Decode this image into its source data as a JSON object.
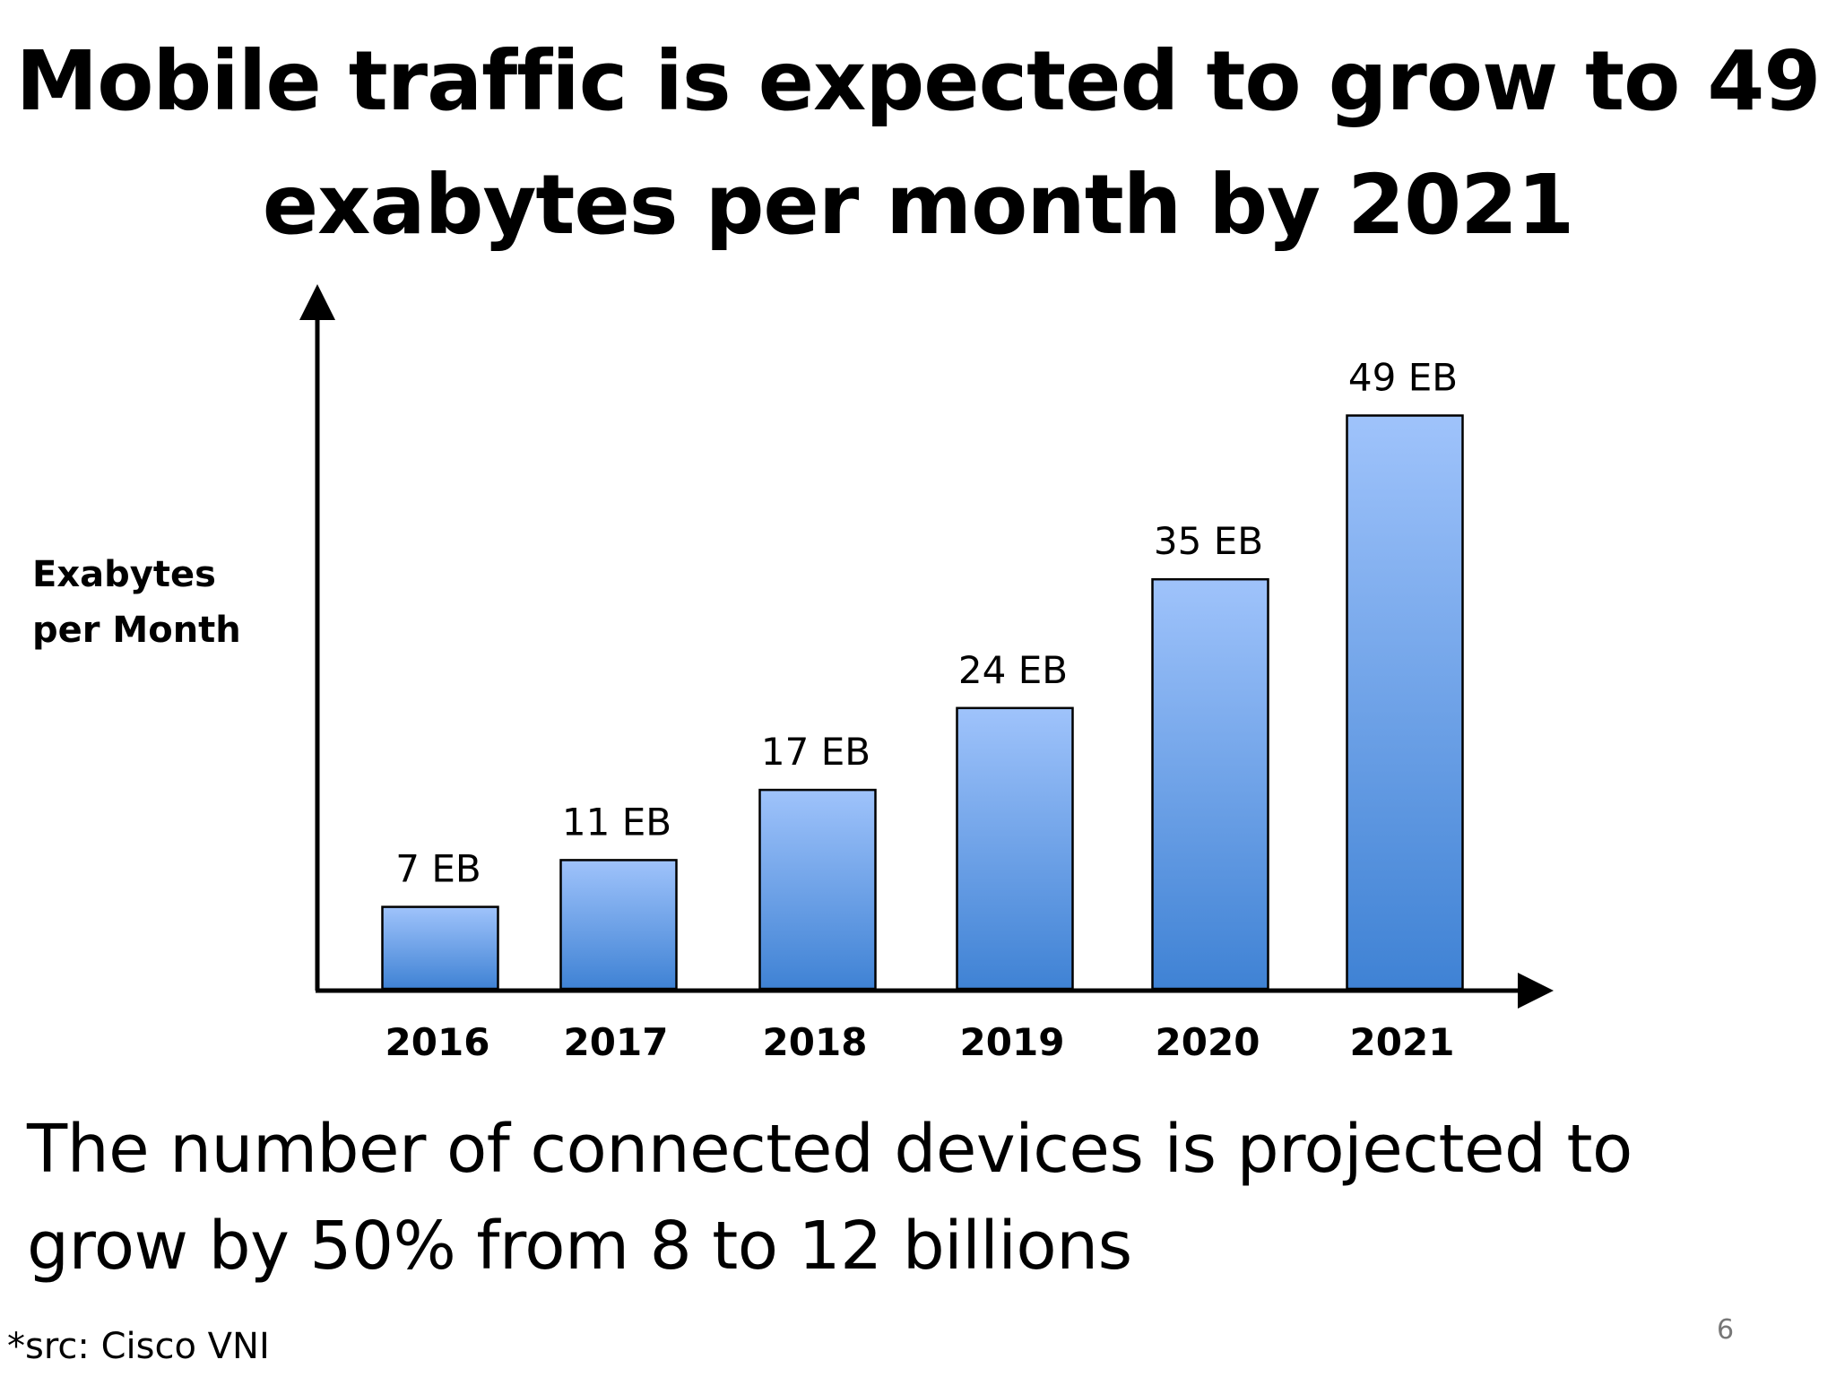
{
  "slide": {
    "title_line1": "Mobile traffic is expected to grow to 49",
    "title_line2": "exabytes per month by 2021",
    "subtitle_line1": "The number of connected devices is projected to",
    "subtitle_line2": "grow by 50% from 8 to 12 billions",
    "source": "*src: Cisco VNI",
    "page_number": "6"
  },
  "chart_data": {
    "type": "bar",
    "title": "",
    "ylabel_line1": "Exabytes",
    "ylabel_line2": "per Month",
    "xlabel": "",
    "categories": [
      "2016",
      "2017",
      "2018",
      "2019",
      "2020",
      "2021"
    ],
    "values": [
      7,
      11,
      17,
      24,
      35,
      49
    ],
    "value_labels": [
      "7 EB",
      "11 EB",
      "17 EB",
      "24 EB",
      "35 EB",
      "49 EB"
    ],
    "ylim": [
      0,
      59
    ],
    "grid": false,
    "legend": "none",
    "colors": {
      "bar_top": "#9fc3fb",
      "bar_bottom": "#3f82d4",
      "bar_outline": "#000000",
      "axis": "#000000"
    }
  }
}
